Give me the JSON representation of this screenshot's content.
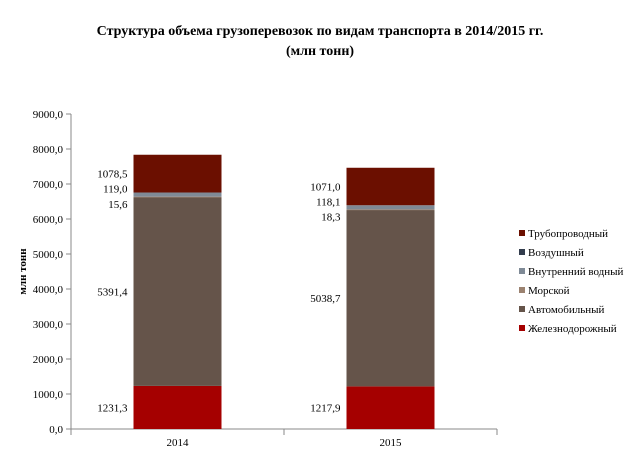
{
  "chart_data": {
    "type": "bar",
    "stacked": true,
    "title": "Структура объема грузоперевозок по видам транспорта в 2014/2015 гг.",
    "subtitle": "(млн тонн)",
    "ylabel": "млн тонн",
    "xlabel": "",
    "ylim": [
      0,
      9000
    ],
    "ytick_step": 1000,
    "ytick_labels": [
      "0,0",
      "1000,0",
      "2000,0",
      "3000,0",
      "4000,0",
      "5000,0",
      "6000,0",
      "7000,0",
      "8000,0",
      "9000,0"
    ],
    "categories": [
      "2014",
      "2015"
    ],
    "grid": false,
    "legend_position": "right",
    "series": [
      {
        "name": "Железнодорожный",
        "color": "#a50000",
        "values": [
          1231.3,
          1217.9
        ],
        "labels": [
          "1231,3",
          "1217,9"
        ]
      },
      {
        "name": "Автомобильный",
        "color": "#65544a",
        "values": [
          5391.4,
          5038.7
        ],
        "labels": [
          "5391,4",
          "5038,7"
        ]
      },
      {
        "name": "Морской",
        "color": "#9b8270",
        "values": [
          15.6,
          18.3
        ],
        "labels": [
          "15,6",
          "18,3"
        ]
      },
      {
        "name": "Внутренний водный",
        "color": "#7f8a96",
        "values": [
          119.0,
          118.1
        ],
        "labels": [
          "119,0",
          "118,1"
        ]
      },
      {
        "name": "Воздушный",
        "color": "#333d4d",
        "values": [
          0,
          0
        ],
        "labels": [
          "",
          ""
        ]
      },
      {
        "name": "Трубопроводный",
        "color": "#6b0f00",
        "values": [
          1078.5,
          1071.0
        ],
        "labels": [
          "1078,5",
          "1071,0"
        ]
      }
    ]
  }
}
